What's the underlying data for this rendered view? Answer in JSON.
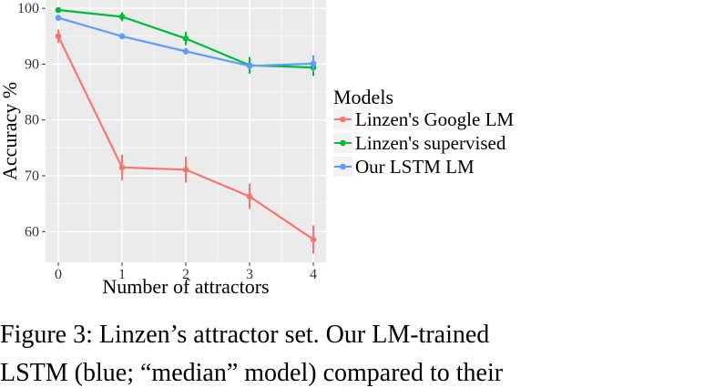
{
  "chart_data": {
    "type": "line",
    "xlabel": "Number of attractors",
    "ylabel": "Accuracy %",
    "x": [
      0,
      1,
      2,
      3,
      4
    ],
    "xticks": [
      "0",
      "1",
      "2",
      "3",
      "4"
    ],
    "yticks": [
      "60",
      "70",
      "80",
      "90",
      "100"
    ],
    "xlim": [
      -0.2,
      4.2
    ],
    "ylim": [
      54.5,
      101.5
    ],
    "grid": true,
    "legend": {
      "title": "Models",
      "placement": "right"
    },
    "series": [
      {
        "name": "Linzen's Google LM",
        "color": "#F8766D",
        "values": [
          95.0,
          71.5,
          71.1,
          66.3,
          58.6
        ],
        "error": [
          1.2,
          2.3,
          2.3,
          2.3,
          2.5
        ]
      },
      {
        "name": "Linzen's supervised",
        "color": "#00BA38",
        "values": [
          99.7,
          98.5,
          94.6,
          89.8,
          89.4
        ],
        "error": [
          0.3,
          0.8,
          1.2,
          1.5,
          1.5
        ]
      },
      {
        "name": "Our LSTM LM",
        "color": "#619CFF",
        "values": [
          98.3,
          95.0,
          92.3,
          89.7,
          90.1
        ],
        "error": [
          0.4,
          0.4,
          0.6,
          0.6,
          1.5
        ]
      }
    ]
  },
  "caption": {
    "line1": "Figure 3:  Linzen’s attractor set.  Our LM-trained",
    "line2": "LSTM (blue; “median” model) compared to their"
  }
}
